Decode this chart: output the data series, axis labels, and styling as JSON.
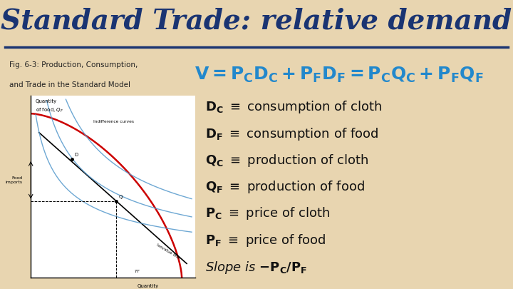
{
  "title": "Standard Trade: relative demand",
  "title_color": "#1a3472",
  "title_fontsize": 28,
  "bg_color": "#e8d5b0",
  "fig_caption_line1": "Fig. 6-3: Production, Consumption,",
  "fig_caption_line2": "and Trade in the Standard Model",
  "equation_color": "#2288cc",
  "text_color": "#111111",
  "graph_bg": "#ffffff",
  "ppf_color": "#cc0000",
  "indiff_color": "#5599cc",
  "isovalue_color": "#000000",
  "underline_color": "#1a3472",
  "bullet_fontsize": 13,
  "eq_fontsize": 18
}
